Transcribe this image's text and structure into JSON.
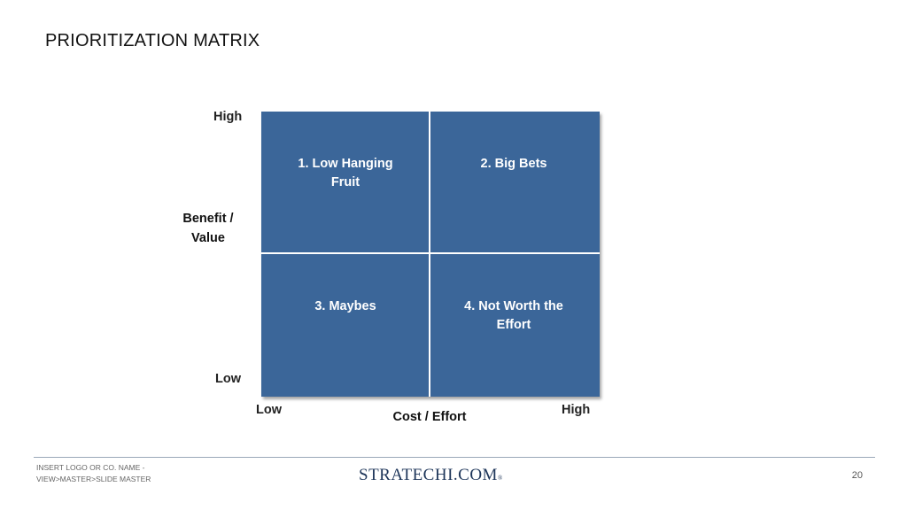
{
  "slide": {
    "title": "PRIORITIZATION MATRIX"
  },
  "matrix": {
    "quadrants": [
      {
        "id": 1,
        "label": "1. Low Hanging Fruit"
      },
      {
        "id": 2,
        "label": "2. Big Bets"
      },
      {
        "id": 3,
        "label": "3. Maybes"
      },
      {
        "id": 4,
        "label": "4. Not Worth the Effort"
      }
    ],
    "y_axis": {
      "label": "Benefit / Value",
      "high": "High",
      "low": "Low"
    },
    "x_axis": {
      "label": "Cost / Effort",
      "low": "Low",
      "high": "High"
    },
    "fill_color": "#3b6699",
    "divider_color": "#ffffff"
  },
  "footer": {
    "placeholder_text": "INSERT LOGO OR CO. NAME - VIEW>MASTER>SLIDE MASTER",
    "brand": "STRATECHI.COM",
    "brand_mark": "®",
    "page_number": "20"
  }
}
